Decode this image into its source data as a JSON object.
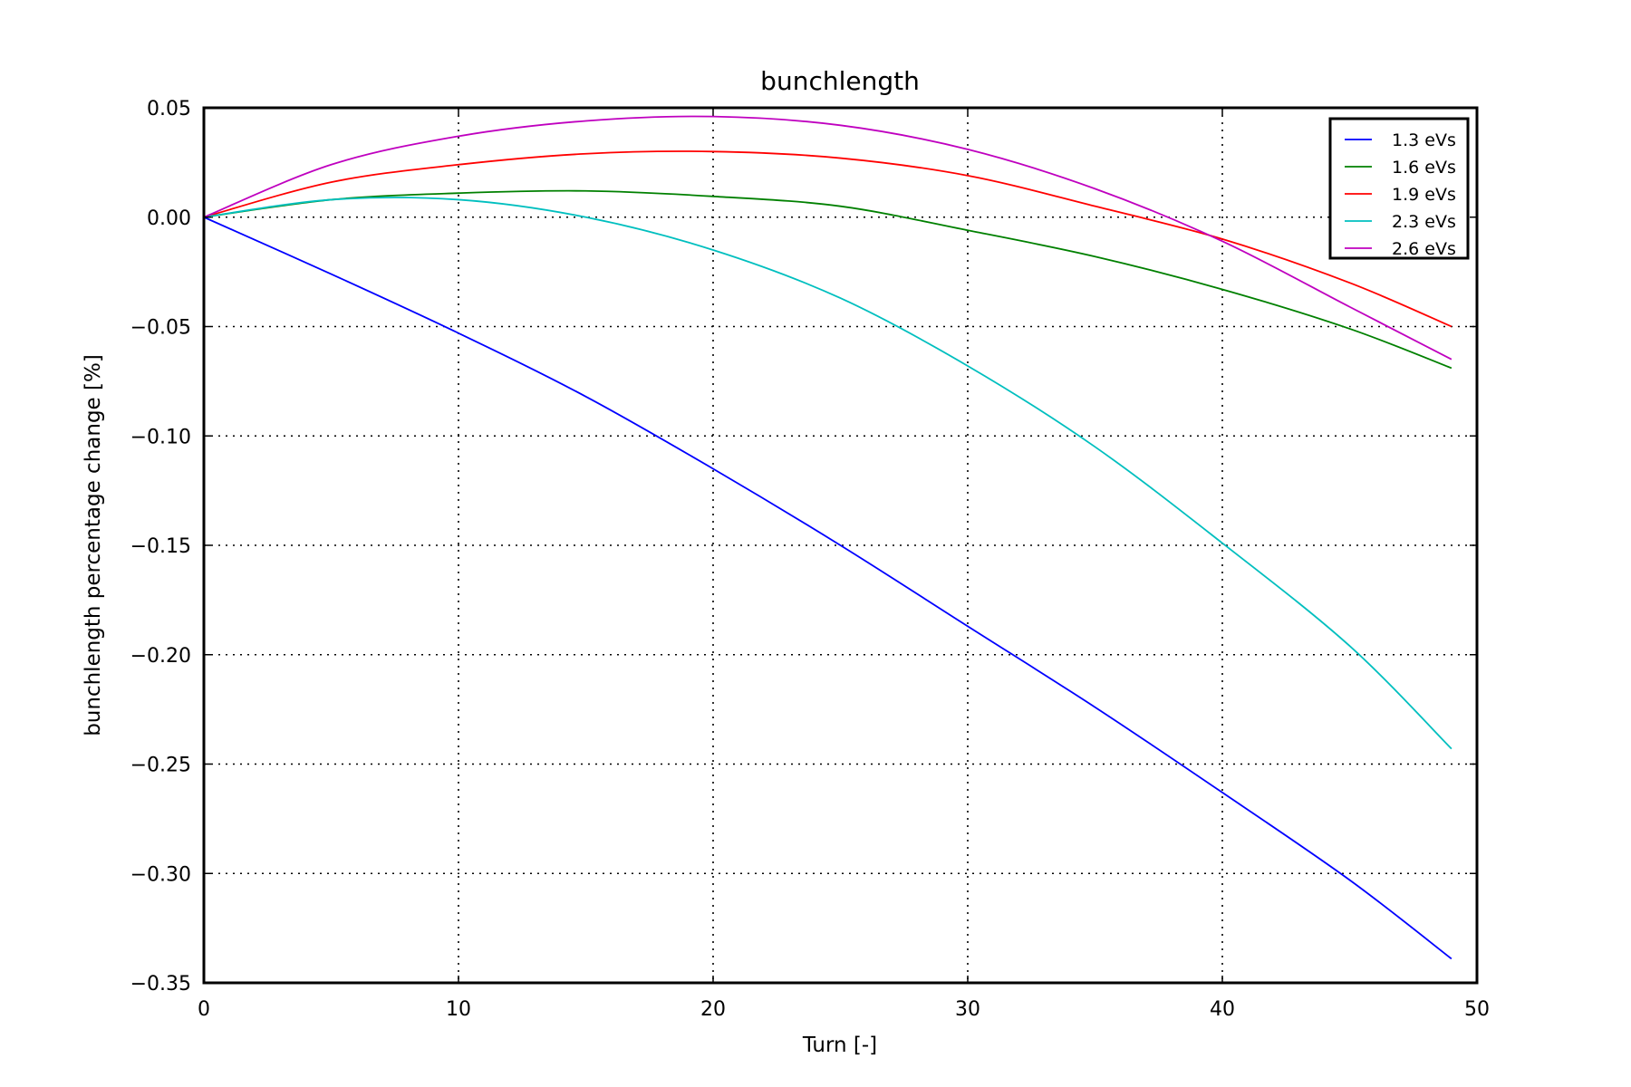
{
  "chart_data": {
    "type": "line",
    "title": "bunchlength",
    "xlabel": "Turn [-]",
    "ylabel": "bunchlength percentage change [%]",
    "xlim": [
      0,
      50
    ],
    "ylim": [
      -0.35,
      0.05
    ],
    "xticks": [
      0,
      10,
      20,
      30,
      40,
      50
    ],
    "yticks": [
      0.05,
      0.0,
      -0.05,
      -0.1,
      -0.15,
      -0.2,
      -0.25,
      -0.3,
      -0.35
    ],
    "ytick_labels": [
      "0.05",
      "0.00",
      "−0.05",
      "−0.10",
      "−0.15",
      "−0.20",
      "−0.25",
      "−0.30",
      "−0.35"
    ],
    "xtick_labels": [
      "0",
      "10",
      "20",
      "30",
      "40",
      "50"
    ],
    "grid": true,
    "legend_position": "top-right",
    "x": [
      0,
      5,
      10,
      15,
      20,
      25,
      30,
      35,
      40,
      45,
      49
    ],
    "series": [
      {
        "name": "1.3 eVs",
        "color": "#0000ff",
        "values": [
          0.0,
          -0.026,
          -0.053,
          -0.082,
          -0.115,
          -0.15,
          -0.187,
          -0.224,
          -0.263,
          -0.303,
          -0.339
        ]
      },
      {
        "name": "1.6 eVs",
        "color": "#008000",
        "values": [
          0.0,
          0.008,
          0.011,
          0.012,
          0.0095,
          0.005,
          -0.006,
          -0.018,
          -0.033,
          -0.051,
          -0.069
        ]
      },
      {
        "name": "1.9 eVs",
        "color": "#ff0000",
        "values": [
          0.0,
          0.016,
          0.024,
          0.029,
          0.03,
          0.027,
          0.019,
          0.005,
          -0.01,
          -0.03,
          -0.05
        ]
      },
      {
        "name": "2.3 eVs",
        "color": "#00bfbf",
        "values": [
          0.0,
          0.008,
          0.008,
          0.0,
          -0.015,
          -0.037,
          -0.068,
          -0.105,
          -0.149,
          -0.196,
          -0.243
        ]
      },
      {
        "name": "2.6 eVs",
        "color": "#bf00bf",
        "values": [
          0.0,
          0.024,
          0.037,
          0.044,
          0.046,
          0.042,
          0.031,
          0.013,
          -0.011,
          -0.041,
          -0.065
        ]
      }
    ]
  }
}
